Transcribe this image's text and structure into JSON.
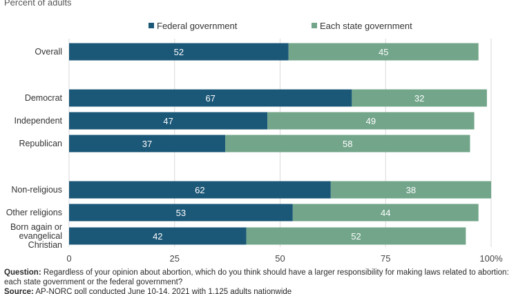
{
  "subtitle": "Percent of adults",
  "chart_data": {
    "type": "bar",
    "orientation": "horizontal",
    "stacked": true,
    "categories": [
      "Overall",
      "Democrat",
      "Independent",
      "Republican",
      "Non-religious",
      "Other religions",
      "Born again or evangelical Christian"
    ],
    "category_lines": [
      [
        "Overall"
      ],
      [
        "Democrat"
      ],
      [
        "Independent"
      ],
      [
        "Republican"
      ],
      [
        "Non-religious"
      ],
      [
        "Other religions"
      ],
      [
        "Born again or",
        "evangelical",
        "Christian"
      ]
    ],
    "groups": [
      [
        0
      ],
      [
        1,
        2,
        3
      ],
      [
        4,
        5,
        6
      ]
    ],
    "series": [
      {
        "name": "Federal government",
        "values": [
          52,
          67,
          47,
          37,
          62,
          53,
          42
        ],
        "color": "#1b5777"
      },
      {
        "name": "Each state government",
        "values": [
          45,
          32,
          49,
          58,
          38,
          44,
          52
        ],
        "color": "#72a58a"
      }
    ],
    "xlim": [
      0,
      100
    ],
    "xticks": [
      0,
      25,
      50,
      75,
      100
    ],
    "xtick_labels": [
      "0",
      "25",
      "50",
      "75",
      "100%"
    ],
    "grid": true,
    "legend_position": "top"
  },
  "footnote": {
    "question_label": "Question:",
    "question_text": "Regardless of your opinion about abortion, which do you think should have a larger responsibility for making laws related to abortion:",
    "question_text_2": "each state government or the federal government?",
    "source_label": "Source:",
    "source_text": "AP-NORC poll conducted June 10-14, 2021 with 1,125 adults nationwide"
  }
}
